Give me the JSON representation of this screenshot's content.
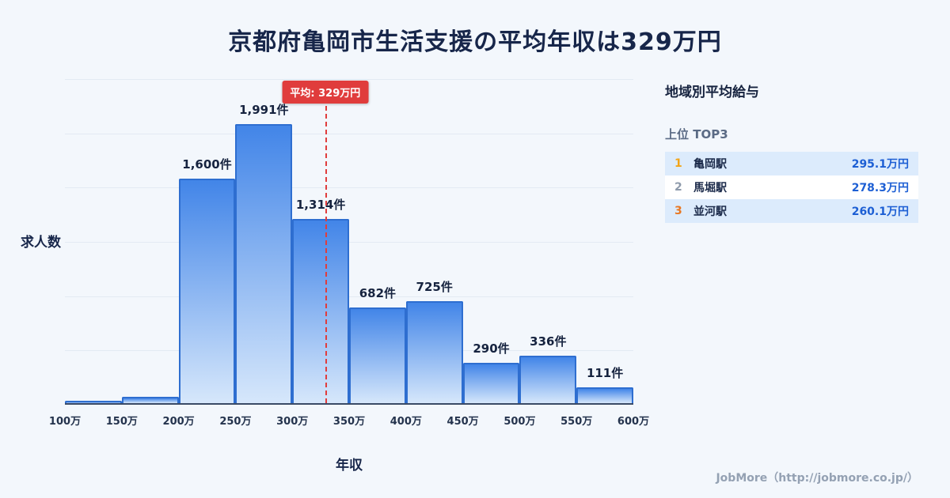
{
  "title": "京都府亀岡市生活支援の平均年収は329万円",
  "chart_data": {
    "type": "bar",
    "title": "京都府亀岡市生活支援の平均年収は329万円",
    "categories": [
      "100万",
      "150万",
      "200万",
      "250万",
      "300万",
      "350万",
      "400万",
      "450万",
      "500万",
      "550万",
      "600万"
    ],
    "values": [
      15,
      45,
      1600,
      1991,
      1314,
      682,
      725,
      290,
      336,
      111
    ],
    "labels": [
      "",
      "",
      "1,600件",
      "1,991件",
      "1,314件",
      "682件",
      "725件",
      "290件",
      "336件",
      "111件"
    ],
    "xlabel": "年収",
    "ylabel": "求人数",
    "ylim": [
      0,
      2000
    ],
    "grid": "horizontal",
    "average": {
      "label": "平均: 329万円",
      "value": 329,
      "x_min": 100,
      "x_max": 600
    }
  },
  "sidebar": {
    "heading": "地域別平均給与",
    "subheading": "上位 TOP3",
    "rows": [
      {
        "rank": "1",
        "name": "亀岡駅",
        "salary": "295.1万円"
      },
      {
        "rank": "2",
        "name": "馬堀駅",
        "salary": "278.3万円"
      },
      {
        "rank": "3",
        "name": "並河駅",
        "salary": "260.1万円"
      }
    ]
  },
  "footer": "JobMore（http://jobmore.co.jp/）",
  "colors": {
    "background": "#f3f7fc",
    "bar_top": "#4285e8",
    "bar_bottom": "#d6e7fb",
    "bar_border": "#2e6ed0",
    "average_red": "#e03c3c",
    "salary_blue": "#1d5fd4",
    "rank_colors": [
      "#f2a418",
      "#8e9aab",
      "#e87722"
    ],
    "row_highlight": "#dcebfc"
  }
}
